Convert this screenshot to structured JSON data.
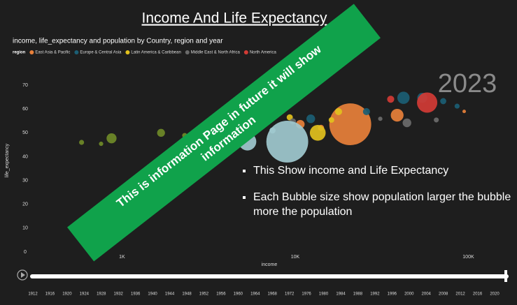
{
  "header": {
    "title": "Income And Life Expectancy"
  },
  "chart_data": {
    "type": "scatter",
    "title": "income, life_expectancy and population by Country, region and year",
    "legend_title": "region",
    "x_label": "income",
    "y_label": "life_expectancy",
    "log_x": true,
    "xlim": [
      300,
      160000
    ],
    "xticks": [
      {
        "value": 1000,
        "label": "1K"
      },
      {
        "value": 10000,
        "label": "10K"
      },
      {
        "value": 100000,
        "label": "100K"
      }
    ],
    "ylim": [
      0,
      75
    ],
    "yticks": [
      0,
      10,
      20,
      30,
      40,
      50,
      60,
      70
    ],
    "series": [
      {
        "name": "East Asia & Pacific",
        "color": "#e8803a",
        "x": [
          20800,
          38800,
          10700,
          14100,
          7700,
          94600
        ],
        "values": [
          53.6,
          57.4,
          53.6,
          52.1,
          58.3,
          59
        ],
        "sizes": [
          1400,
          130,
          60,
          30,
          20,
          10
        ]
      },
      {
        "name": "Europe & Central Asia",
        "color": "#1b5e74",
        "x": [
          54200,
          42200,
          25800,
          71600,
          86100,
          12300
        ],
        "values": [
          64.7,
          64.7,
          58.9,
          63.3,
          61.2,
          55.9
        ],
        "sizes": [
          80,
          120,
          40,
          30,
          20,
          60
        ]
      },
      {
        "name": "Latin America & Caribbean",
        "color": "#e2c11d",
        "x": [
          13500,
          17800,
          9300,
          8100,
          16200
        ],
        "values": [
          50,
          58.9,
          56.5,
          58.9,
          55.4
        ],
        "sizes": [
          200,
          40,
          30,
          20,
          25
        ]
      },
      {
        "name": "Middle East & North Africa",
        "color": "#6b6b6b",
        "x": [
          44200,
          65300,
          31000,
          9700
        ],
        "values": [
          54.2,
          55.4,
          55.9,
          54.8
        ],
        "sizes": [
          60,
          20,
          15,
          30
        ]
      },
      {
        "name": "North America",
        "color": "#d23b35",
        "x": [
          57800,
          35600
        ],
        "values": [
          62.7,
          64.1
        ],
        "sizes": [
          330,
          40
        ]
      },
      {
        "color": "#9fc9cf",
        "x": [
          9000,
          5300,
          7400
        ],
        "values": [
          46.3,
          46.3,
          51
        ],
        "sizes": [
          1400,
          250,
          30
        ]
      },
      {
        "color": "#6f8a28",
        "x": [
          870,
          584,
          1680,
          2300,
          3340,
          757
        ],
        "values": [
          47.7,
          46,
          50,
          48.9,
          52.7,
          45.4
        ],
        "sizes": [
          80,
          20,
          50,
          20,
          25,
          15
        ]
      }
    ]
  },
  "year_label": "2023",
  "banner": "This is information Page  in future it will show information",
  "bullets": [
    "This Show  income and Life Expectancy",
    "Each Bubble size show population larger the bubble more the population"
  ],
  "timeline": {
    "years": [
      1912,
      1916,
      1920,
      1924,
      1928,
      1932,
      1936,
      1940,
      1944,
      1948,
      1952,
      1956,
      1960,
      1964,
      1968,
      1972,
      1976,
      1980,
      1984,
      1988,
      1992,
      1996,
      2000,
      2004,
      2008,
      2012,
      2016,
      2020
    ]
  }
}
